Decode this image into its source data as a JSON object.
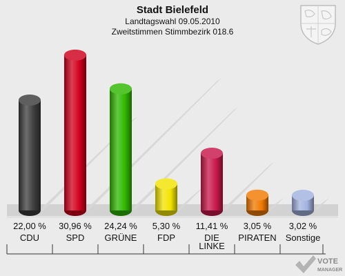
{
  "header": {
    "title": "Stadt Bielefeld",
    "subtitle1": "Landtagswahl 09.05.2010",
    "subtitle2": "Zweitstimmen Stimmbezirk 018.6"
  },
  "watermark": {
    "line1": "VOTE",
    "line2": "MANAGER"
  },
  "chart_data": {
    "type": "bar",
    "title": "Stadt Bielefeld",
    "categories": [
      "CDU",
      "SPD",
      "GRÜNE",
      "FDP",
      "DIE LINKE",
      "PIRATEN",
      "Sonstige"
    ],
    "category_lines": [
      [
        "CDU"
      ],
      [
        "SPD"
      ],
      [
        "GRÜNE"
      ],
      [
        "FDP"
      ],
      [
        "DIE",
        "LINKE"
      ],
      [
        "PIRATEN"
      ],
      [
        "Sonstige"
      ]
    ],
    "values": [
      22.0,
      30.96,
      24.24,
      5.3,
      11.41,
      3.05,
      3.02
    ],
    "value_labels": [
      "22,00 %",
      "30,96 %",
      "24,24 %",
      "5,30 %",
      "11,41 %",
      "3,05 %",
      "3,02 %"
    ],
    "colors": [
      "#3c3c3c",
      "#d0001c",
      "#2fb800",
      "#f2e400",
      "#c8174a",
      "#f07a00",
      "#a2b2e0"
    ],
    "ylim": [
      0,
      33
    ],
    "grid": false,
    "legend": "none"
  }
}
